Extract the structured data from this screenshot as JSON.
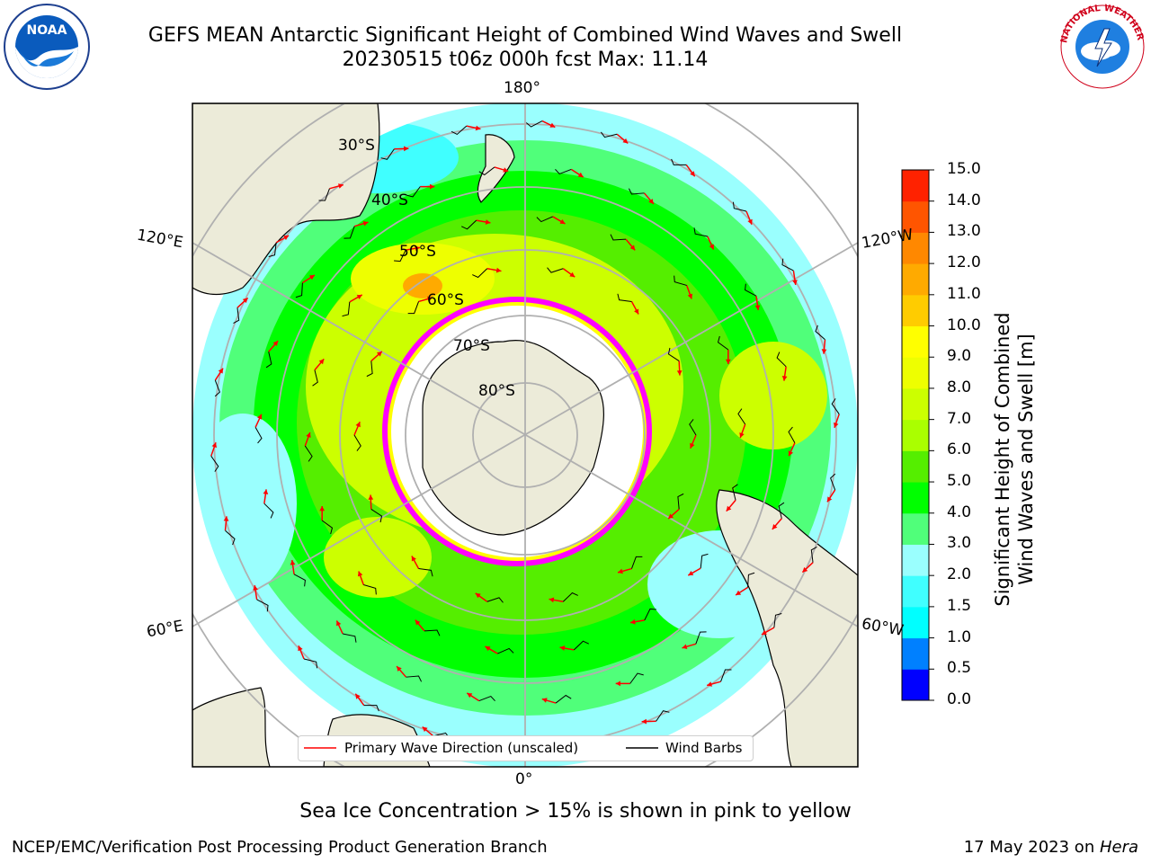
{
  "title": {
    "line1": "GEFS MEAN Antarctic Significant Height of Combined Wind Waves and Swell",
    "line2": "20230515 t06z 000h fcst   Max: 11.14"
  },
  "map": {
    "longitude_labels": [
      "180°",
      "120°E",
      "120°W",
      "60°E",
      "60°W",
      "0°"
    ],
    "latitude_labels": [
      "30°S",
      "40°S",
      "50°S",
      "60°S",
      "70°S",
      "80°S"
    ],
    "colors": {
      "ocean_low": "#9afffe",
      "land": "#ecebd9",
      "ice": "#ffffff",
      "ice_edge": "#ff00ff",
      "wave_arrow": "#ff0000",
      "barb": "#000000"
    }
  },
  "legend": {
    "primary_wave_direction": "Primary Wave Direction (unscaled)",
    "wind_barbs": "Wind Barbs"
  },
  "colorbar": {
    "label_line1": "Significant Height of Combined",
    "label_line2": "Wind Waves and Swell [m]",
    "ticks": [
      "0.0",
      "0.5",
      "1.0",
      "1.5",
      "2.0",
      "3.0",
      "4.0",
      "5.0",
      "6.0",
      "7.0",
      "8.0",
      "9.0",
      "10.0",
      "11.0",
      "12.0",
      "13.0",
      "14.0",
      "15.0"
    ],
    "colors": [
      "#0000ff",
      "#0080ff",
      "#00ffff",
      "#40ffff",
      "#9afffe",
      "#50ff7a",
      "#00ff00",
      "#55ee00",
      "#aaff00",
      "#ccff00",
      "#eeff00",
      "#ffff00",
      "#ffcc00",
      "#ffaa00",
      "#ff8800",
      "#ff5500",
      "#ff2200"
    ]
  },
  "note": "Sea Ice Concentration > 15% is shown in pink to yellow",
  "footer": {
    "left": "NCEP/EMC/Verification Post Processing Product Generation Branch",
    "date": "17 May 2023 on ",
    "machine": "Hera"
  },
  "logos": {
    "noaa_text": "NOAA",
    "nws_text": "NATIONAL WEATHER SERVICE"
  }
}
